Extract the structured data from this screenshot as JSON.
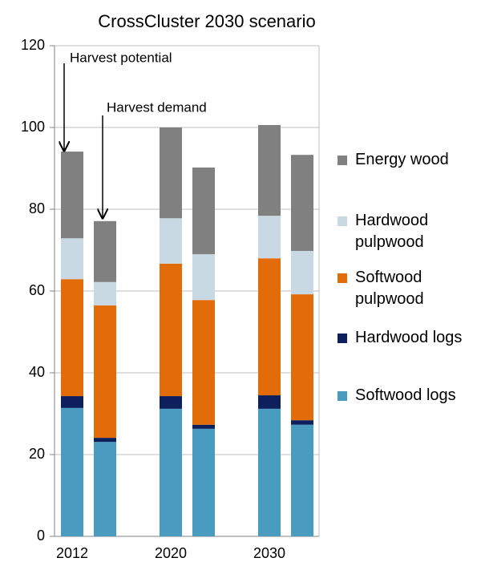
{
  "chart_data": {
    "type": "stacked_bar",
    "title": "CrossCluster 2030 scenario",
    "categories": [
      "2012",
      null,
      "2020",
      null,
      "2030",
      null
    ],
    "series": [
      {
        "name": "Softwood logs",
        "color": "#4a9bc0",
        "values": [
          31.4,
          23.1,
          31.2,
          26.3,
          31.2,
          27.3
        ]
      },
      {
        "name": "Hardwood logs",
        "color": "#0d1f5c",
        "values": [
          2.9,
          1.0,
          3.1,
          1.0,
          3.3,
          1.1
        ]
      },
      {
        "name": "Softwood pulpwood",
        "color": "#e36c0a",
        "values": [
          28.6,
          32.4,
          32.4,
          30.5,
          33.5,
          30.8
        ]
      },
      {
        "name": "Hardwood pulpwood",
        "color": "#c8d9e3",
        "values": [
          10.0,
          5.7,
          11.1,
          11.2,
          10.4,
          10.6
        ]
      },
      {
        "name": "Energy wood",
        "color": "#808080",
        "values": [
          21.2,
          14.9,
          22.2,
          21.2,
          22.2,
          23.5
        ]
      }
    ],
    "annotations": [
      "Harvest potential",
      "Harvest demand"
    ],
    "ylim": [
      0,
      120
    ],
    "yticks": [
      0,
      20,
      40,
      60,
      80,
      100,
      120
    ],
    "grid": true,
    "legend": "right"
  }
}
